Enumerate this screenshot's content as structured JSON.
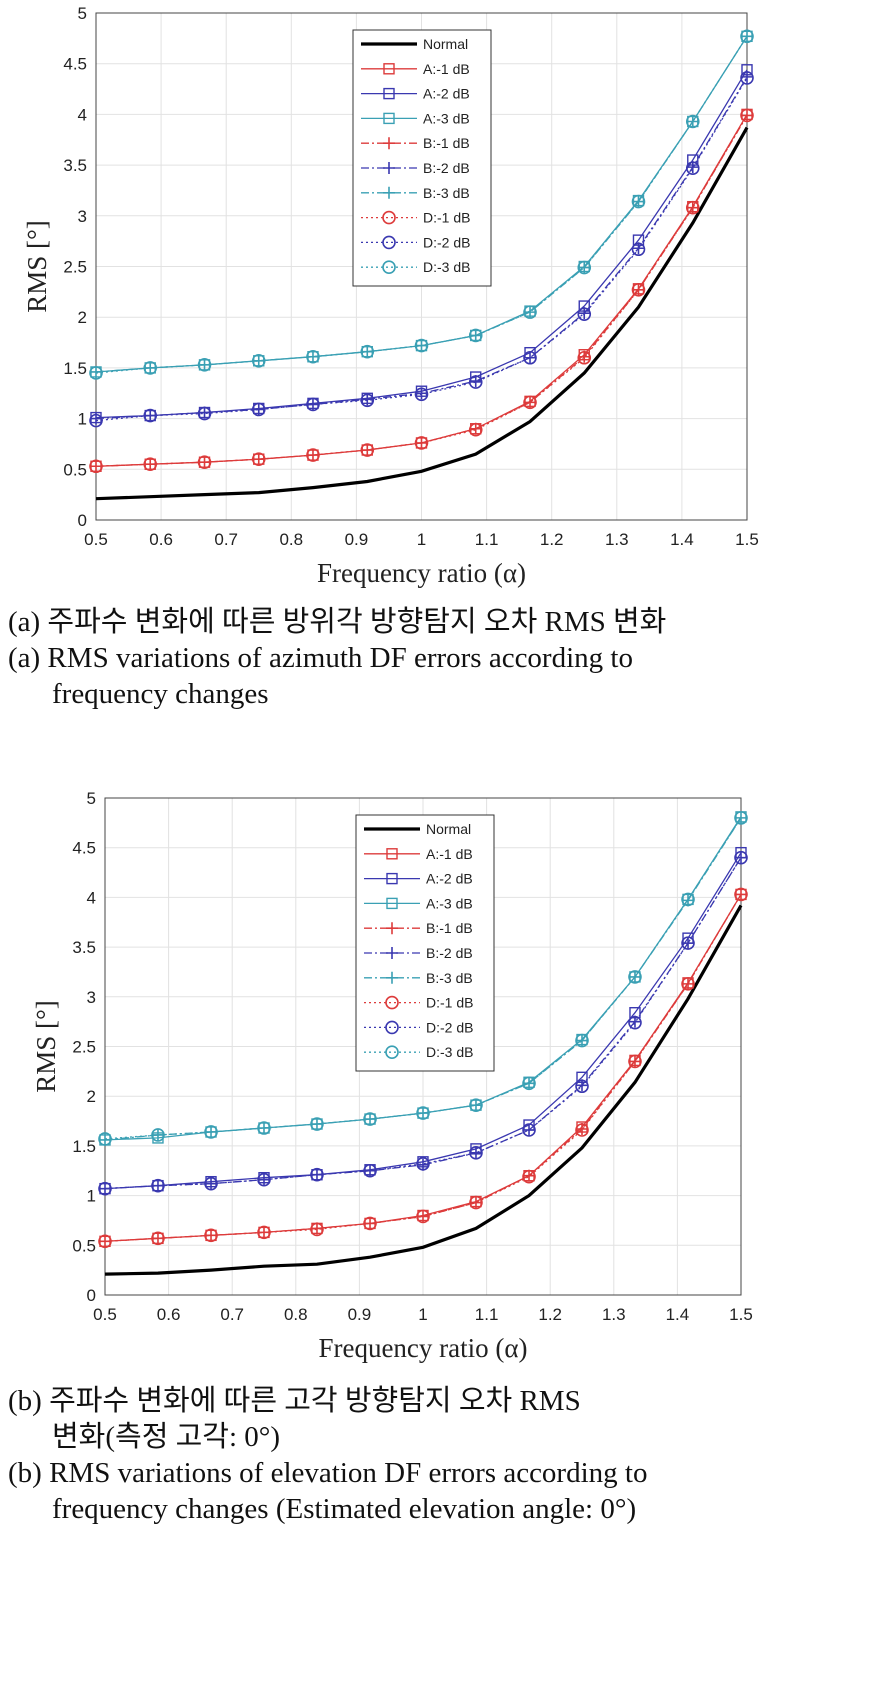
{
  "colors": {
    "normal": "#000000",
    "red": "#dd3b3b",
    "blue": "#3a38b0",
    "teal": "#3aa0b4",
    "grid": "#e2e2e2"
  },
  "captions": {
    "a_korean": "(a) 주파수 변화에 따른 방위각 방향탐지 오차 RMS 변화",
    "a_english_1": "(a) RMS variations of azimuth DF errors according to",
    "a_english_2": "frequency changes",
    "b_korean_1": "(b) 주파수 변화에 따른 고각 방향탐지 오차 RMS",
    "b_korean_2": "변화(측정 고각: 0°)",
    "b_english_1": "(b) RMS variations of elevation DF errors according to",
    "b_english_2": "frequency changes (Estimated elevation angle: 0°)"
  },
  "chart_data": [
    {
      "type": "line",
      "xlabel": "Frequency ratio (α)",
      "ylabel": "RMS [°]",
      "xlim": [
        0.5,
        1.5
      ],
      "ylim": [
        0,
        5
      ],
      "x_ticks": [
        "0.5",
        "0.6",
        "0.7",
        "0.8",
        "0.9",
        "1",
        "1.1",
        "1.2",
        "1.3",
        "1.4",
        "1.5"
      ],
      "y_ticks": [
        "0",
        "0.5",
        "1",
        "1.5",
        "2",
        "2.5",
        "3",
        "3.5",
        "4",
        "4.5",
        "5"
      ],
      "grid": true,
      "legend_position": "top-center",
      "x": [
        0.5,
        0.5833,
        0.6667,
        0.75,
        0.8333,
        0.9167,
        1.0,
        1.0833,
        1.1667,
        1.25,
        1.3333,
        1.4167,
        1.5
      ],
      "series": [
        {
          "name": "Normal",
          "color": "normal",
          "style": "solid",
          "marker": "none",
          "values": [
            0.21,
            0.23,
            0.25,
            0.27,
            0.32,
            0.38,
            0.48,
            0.65,
            0.97,
            1.45,
            2.1,
            2.93,
            3.87
          ]
        },
        {
          "name": "A:-1 dB",
          "color": "red",
          "style": "solid",
          "marker": "square",
          "values": [
            0.53,
            0.55,
            0.57,
            0.6,
            0.64,
            0.69,
            0.76,
            0.9,
            1.17,
            1.63,
            2.28,
            3.09,
            4.0
          ]
        },
        {
          "name": "A:-2 dB",
          "color": "blue",
          "style": "solid",
          "marker": "square",
          "values": [
            1.01,
            1.03,
            1.06,
            1.1,
            1.15,
            1.2,
            1.27,
            1.41,
            1.65,
            2.11,
            2.76,
            3.55,
            4.44
          ]
        },
        {
          "name": "A:-3 dB",
          "color": "teal",
          "style": "solid",
          "marker": "square",
          "values": [
            1.46,
            1.5,
            1.53,
            1.57,
            1.61,
            1.66,
            1.72,
            1.82,
            2.06,
            2.5,
            3.15,
            3.93,
            4.77
          ]
        },
        {
          "name": "B:-1 dB",
          "color": "red",
          "style": "dashdot",
          "marker": "plus",
          "values": [
            0.53,
            0.55,
            0.57,
            0.6,
            0.64,
            0.69,
            0.76,
            0.9,
            1.16,
            1.61,
            2.27,
            3.08,
            3.99
          ]
        },
        {
          "name": "B:-2 dB",
          "color": "blue",
          "style": "dashdot",
          "marker": "plus",
          "values": [
            1.0,
            1.03,
            1.06,
            1.09,
            1.14,
            1.19,
            1.25,
            1.37,
            1.6,
            2.04,
            2.68,
            3.48,
            4.37
          ]
        },
        {
          "name": "B:-3 dB",
          "color": "teal",
          "style": "dashdot",
          "marker": "plus",
          "values": [
            1.46,
            1.5,
            1.53,
            1.57,
            1.61,
            1.66,
            1.72,
            1.82,
            2.05,
            2.49,
            3.14,
            3.93,
            4.77
          ]
        },
        {
          "name": "D:-1 dB",
          "color": "red",
          "style": "dotted",
          "marker": "circle",
          "values": [
            0.53,
            0.55,
            0.57,
            0.6,
            0.64,
            0.69,
            0.76,
            0.89,
            1.16,
            1.6,
            2.27,
            3.08,
            3.99
          ]
        },
        {
          "name": "D:-2 dB",
          "color": "blue",
          "style": "dotted",
          "marker": "circle",
          "values": [
            0.98,
            1.03,
            1.05,
            1.09,
            1.14,
            1.18,
            1.24,
            1.36,
            1.6,
            2.03,
            2.67,
            3.47,
            4.36
          ]
        },
        {
          "name": "D:-3 dB",
          "color": "teal",
          "style": "dotted",
          "marker": "circle",
          "values": [
            1.45,
            1.5,
            1.53,
            1.57,
            1.61,
            1.66,
            1.72,
            1.82,
            2.05,
            2.49,
            3.14,
            3.93,
            4.77
          ]
        }
      ]
    },
    {
      "type": "line",
      "xlabel": "Frequency ratio (α)",
      "ylabel": "RMS [°]",
      "xlim": [
        0.5,
        1.5
      ],
      "ylim": [
        0,
        5
      ],
      "x_ticks": [
        "0.5",
        "0.6",
        "0.7",
        "0.8",
        "0.9",
        "1",
        "1.1",
        "1.2",
        "1.3",
        "1.4",
        "1.5"
      ],
      "y_ticks": [
        "0",
        "0.5",
        "1",
        "1.5",
        "2",
        "2.5",
        "3",
        "3.5",
        "4",
        "4.5",
        "5"
      ],
      "grid": true,
      "legend_position": "top-center",
      "x": [
        0.5,
        0.5833,
        0.6667,
        0.75,
        0.8333,
        0.9167,
        1.0,
        1.0833,
        1.1667,
        1.25,
        1.3333,
        1.4167,
        1.5
      ],
      "series": [
        {
          "name": "Normal",
          "color": "normal",
          "style": "solid",
          "marker": "none",
          "values": [
            0.21,
            0.22,
            0.25,
            0.29,
            0.31,
            0.38,
            0.48,
            0.67,
            1.0,
            1.48,
            2.14,
            2.98,
            3.92
          ]
        },
        {
          "name": "A:-1 dB",
          "color": "red",
          "style": "solid",
          "marker": "square",
          "values": [
            0.54,
            0.57,
            0.6,
            0.63,
            0.67,
            0.72,
            0.8,
            0.94,
            1.2,
            1.69,
            2.36,
            3.14,
            4.03
          ]
        },
        {
          "name": "A:-2 dB",
          "color": "blue",
          "style": "solid",
          "marker": "square",
          "values": [
            1.07,
            1.1,
            1.14,
            1.18,
            1.21,
            1.26,
            1.34,
            1.47,
            1.71,
            2.19,
            2.84,
            3.59,
            4.45
          ]
        },
        {
          "name": "A:-3 dB",
          "color": "teal",
          "style": "solid",
          "marker": "square",
          "values": [
            1.56,
            1.58,
            1.64,
            1.68,
            1.72,
            1.77,
            1.83,
            1.91,
            2.14,
            2.57,
            3.2,
            3.98,
            4.81
          ]
        },
        {
          "name": "B:-1 dB",
          "color": "red",
          "style": "dashdot",
          "marker": "plus",
          "values": [
            0.54,
            0.57,
            0.6,
            0.63,
            0.67,
            0.72,
            0.79,
            0.93,
            1.2,
            1.67,
            2.35,
            3.13,
            4.03
          ]
        },
        {
          "name": "B:-2 dB",
          "color": "blue",
          "style": "dashdot",
          "marker": "plus",
          "values": [
            1.07,
            1.1,
            1.12,
            1.16,
            1.21,
            1.25,
            1.31,
            1.43,
            1.66,
            2.11,
            2.75,
            3.54,
            4.4
          ]
        },
        {
          "name": "B:-3 dB",
          "color": "teal",
          "style": "dashdot",
          "marker": "plus",
          "values": [
            1.56,
            1.61,
            1.64,
            1.68,
            1.72,
            1.77,
            1.83,
            1.91,
            2.13,
            2.56,
            3.2,
            3.97,
            4.8
          ]
        },
        {
          "name": "D:-1 dB",
          "color": "red",
          "style": "dotted",
          "marker": "circle",
          "values": [
            0.54,
            0.57,
            0.6,
            0.63,
            0.66,
            0.72,
            0.79,
            0.93,
            1.19,
            1.66,
            2.35,
            3.13,
            4.03
          ]
        },
        {
          "name": "D:-2 dB",
          "color": "blue",
          "style": "dotted",
          "marker": "circle",
          "values": [
            1.07,
            1.1,
            1.12,
            1.16,
            1.21,
            1.25,
            1.32,
            1.43,
            1.66,
            2.1,
            2.74,
            3.54,
            4.4
          ]
        },
        {
          "name": "D:-3 dB",
          "color": "teal",
          "style": "dotted",
          "marker": "circle",
          "values": [
            1.57,
            1.61,
            1.64,
            1.68,
            1.72,
            1.77,
            1.83,
            1.91,
            2.13,
            2.56,
            3.2,
            3.98,
            4.8
          ]
        }
      ]
    }
  ]
}
